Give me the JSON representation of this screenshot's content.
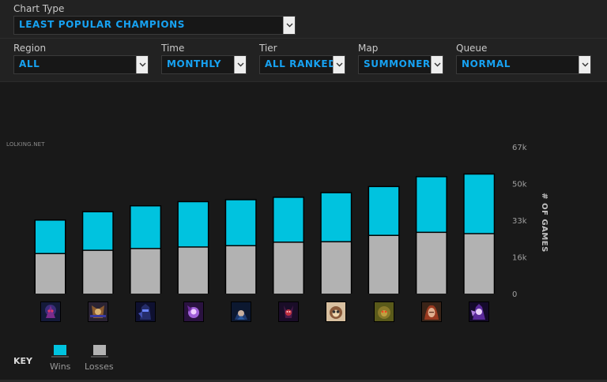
{
  "filters": {
    "chart_type": {
      "label": "Chart Type",
      "value": "LEAST POPULAR CHAMPIONS"
    },
    "region": {
      "label": "Region",
      "value": "ALL"
    },
    "time": {
      "label": "Time",
      "value": "MONTHLY"
    },
    "tier": {
      "label": "Tier",
      "value": "ALL RANKED"
    },
    "map": {
      "label": "Map",
      "value": "SUMMONER'S"
    },
    "queue": {
      "label": "Queue",
      "value": "NORMAL"
    }
  },
  "watermark": "LOLKING.NET",
  "key": {
    "title": "KEY",
    "wins_label": "Wins",
    "losses_label": "Losses"
  },
  "colors": {
    "wins": "#00c3df",
    "losses": "#b2b2b2",
    "accent": "#17a2f2"
  },
  "chart_data": {
    "type": "bar",
    "stacked": true,
    "ylabel": "# OF GAMES",
    "yticks": [
      "0",
      "16k",
      "33k",
      "50k",
      "67k"
    ],
    "ytick_values": [
      0,
      16750,
      33500,
      50250,
      67000
    ],
    "ylim": [
      0,
      67000
    ],
    "categories": [
      "champion-1",
      "champion-2",
      "champion-3",
      "champion-4",
      "champion-5",
      "champion-6",
      "champion-7",
      "champion-8",
      "champion-9",
      "champion-10"
    ],
    "series": [
      {
        "name": "Losses",
        "values": [
          18000,
          19500,
          20300,
          21000,
          21600,
          23200,
          23400,
          26300,
          27700,
          27100
        ]
      },
      {
        "name": "Wins",
        "values": [
          15300,
          17600,
          19500,
          20700,
          21000,
          20500,
          22400,
          22300,
          25400,
          27200
        ]
      }
    ],
    "grid": false,
    "legend": "bottom-left"
  },
  "champion_icons": [
    "shadow-assassin-icon",
    "armored-warrior-icon",
    "dark-knight-icon",
    "violet-mage-icon",
    "hooded-figure-icon",
    "crimson-demon-icon",
    "yordle-gunner-icon",
    "beast-warrior-icon",
    "red-haired-champion-icon",
    "purple-spirit-icon"
  ]
}
